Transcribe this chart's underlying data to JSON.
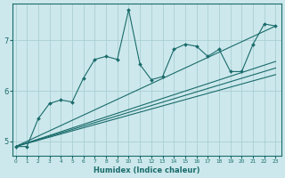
{
  "xlabel": "Humidex (Indice chaleur)",
  "bg_color": "#cce8ec",
  "line_color": "#1a6b6b",
  "grid_color": "#aacfd4",
  "x_data": [
    0,
    1,
    2,
    3,
    4,
    5,
    6,
    7,
    8,
    9,
    10,
    11,
    12,
    13,
    14,
    15,
    16,
    17,
    18,
    19,
    20,
    21,
    22,
    23
  ],
  "y_main": [
    4.9,
    4.9,
    5.45,
    5.75,
    5.82,
    5.78,
    6.25,
    6.62,
    6.68,
    6.62,
    7.6,
    6.52,
    6.22,
    6.28,
    6.82,
    6.92,
    6.88,
    6.68,
    6.82,
    6.38,
    6.38,
    6.92,
    7.32,
    7.28
  ],
  "reg_lines": [
    {
      "x": [
        0,
        23
      ],
      "y": [
        4.9,
        6.32
      ]
    },
    {
      "x": [
        0,
        23
      ],
      "y": [
        4.9,
        6.45
      ]
    },
    {
      "x": [
        0,
        23
      ],
      "y": [
        4.9,
        6.58
      ]
    },
    {
      "x": [
        0,
        23
      ],
      "y": [
        4.9,
        7.28
      ]
    }
  ],
  "xlim": [
    -0.3,
    23.5
  ],
  "ylim": [
    4.72,
    7.72
  ],
  "yticks": [
    5,
    6,
    7
  ],
  "xticks": [
    0,
    1,
    2,
    3,
    4,
    5,
    6,
    7,
    8,
    9,
    10,
    11,
    12,
    13,
    14,
    15,
    16,
    17,
    18,
    19,
    20,
    21,
    22,
    23
  ]
}
